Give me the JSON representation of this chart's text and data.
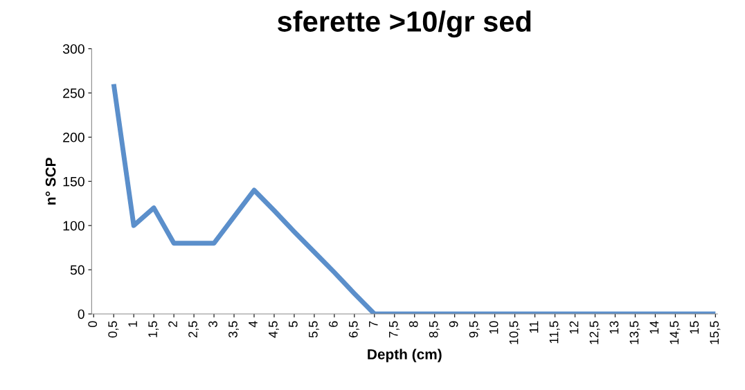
{
  "chart_data": {
    "type": "line",
    "title": "sferette >10/gr sed",
    "xlabel": "Depth (cm)",
    "ylabel": "n° SCP",
    "categories": [
      "0",
      "0,5",
      "1",
      "1,5",
      "2",
      "2,5",
      "3",
      "3,5",
      "4",
      "4,5",
      "5",
      "5,5",
      "6",
      "6,5",
      "7",
      "7,5",
      "8",
      "8,5",
      "9",
      "9,5",
      "10",
      "10,5",
      "11",
      "11,5",
      "12",
      "12,5",
      "13",
      "13,5",
      "14",
      "14,5",
      "15",
      "15,5"
    ],
    "series": [
      {
        "color": "#5b8fcb",
        "values": [
          null,
          260,
          100,
          120,
          80,
          80,
          80,
          110,
          140,
          117,
          93,
          70,
          47,
          23,
          0,
          0,
          0,
          0,
          0,
          0,
          0,
          0,
          0,
          0,
          0,
          0,
          0,
          0,
          0,
          0,
          0,
          0
        ]
      }
    ],
    "ylim": [
      0,
      300
    ],
    "yticks": [
      0,
      50,
      100,
      150,
      200,
      250,
      300
    ],
    "grid": false,
    "legend": false,
    "marker": "none",
    "line_style": "solid"
  }
}
